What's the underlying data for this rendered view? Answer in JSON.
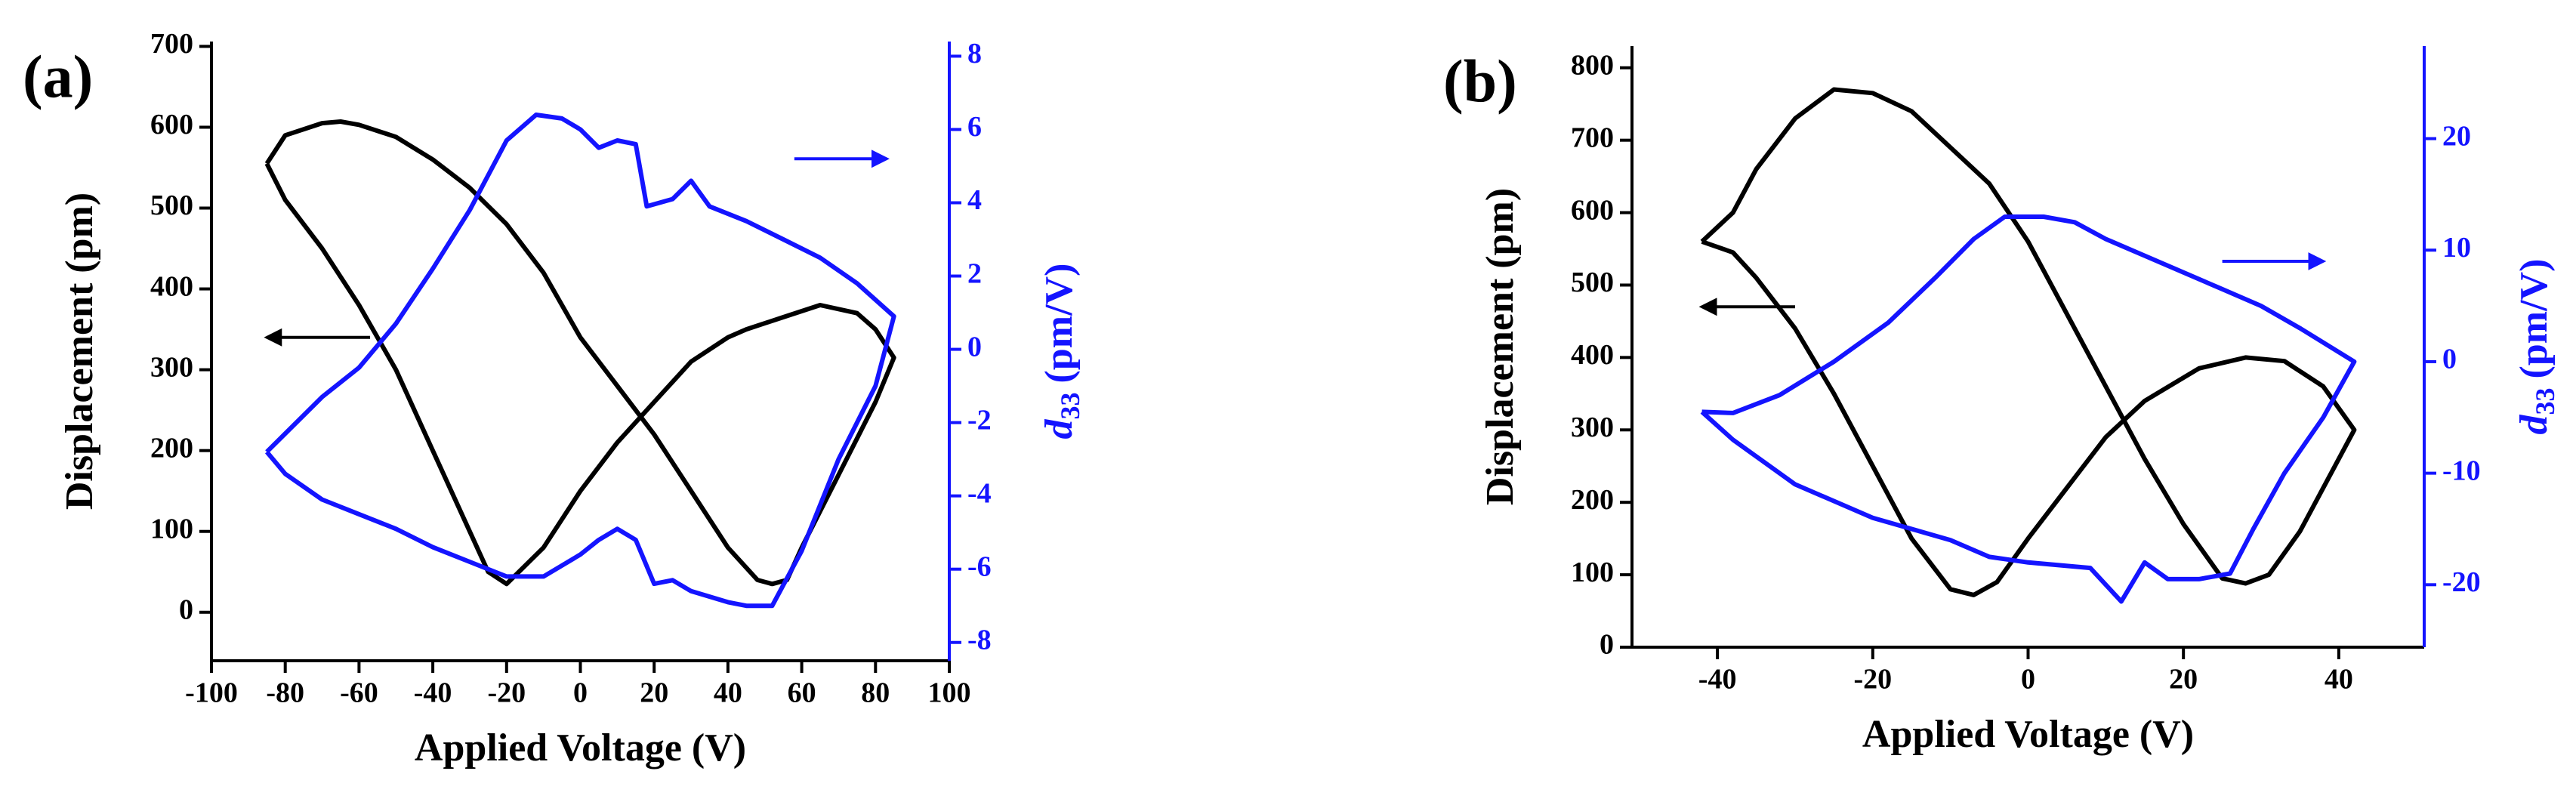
{
  "chart_data": [
    {
      "type": "line",
      "panel_label": "(a)",
      "xlabel": "Applied Voltage (V)",
      "ylabel": "Displacement (pm)",
      "y2label": {
        "symbol": "d",
        "subscript": "33",
        "unit": "(pm/V)"
      },
      "xlim": [
        -100,
        100
      ],
      "xticks": [
        -100,
        -80,
        -60,
        -40,
        -20,
        0,
        20,
        40,
        60,
        80,
        100
      ],
      "ylim": [
        -60,
        706
      ],
      "yticks": [
        0,
        100,
        200,
        300,
        400,
        500,
        600,
        700
      ],
      "y2lim": [
        -8.5,
        8.4
      ],
      "y2ticks": [
        -8,
        -6,
        -4,
        -2,
        0,
        2,
        4,
        6,
        8
      ],
      "series": [
        {
          "color": "#000000",
          "axis": "y",
          "x": [
            -85,
            -80,
            -70,
            -65,
            -60,
            -50,
            -40,
            -30,
            -20,
            -10,
            0,
            10,
            20,
            30,
            40,
            48,
            52,
            56,
            60,
            70,
            80,
            85,
            80,
            75,
            65,
            55,
            45,
            40,
            30,
            20,
            10,
            0,
            -10,
            -20,
            -25,
            -30,
            -40,
            -50,
            -60,
            -70,
            -80,
            -85
          ],
          "values": [
            555,
            590,
            605,
            607,
            603,
            588,
            560,
            525,
            480,
            420,
            340,
            280,
            220,
            150,
            80,
            40,
            35,
            40,
            80,
            170,
            260,
            315,
            350,
            370,
            380,
            365,
            350,
            340,
            310,
            260,
            210,
            150,
            80,
            35,
            50,
            100,
            200,
            300,
            380,
            450,
            510,
            555
          ]
        },
        {
          "color": "#1414ff",
          "axis": "y2",
          "x": [
            -85,
            -70,
            -60,
            -50,
            -40,
            -30,
            -20,
            -12,
            -5,
            0,
            5,
            10,
            15,
            18,
            25,
            30,
            35,
            45,
            55,
            65,
            75,
            85,
            80,
            70,
            60,
            52,
            45,
            40,
            30,
            25,
            20,
            15,
            10,
            5,
            0,
            -10,
            -20,
            -30,
            -40,
            -50,
            -60,
            -70,
            -80,
            -85
          ],
          "values": [
            -2.8,
            -1.3,
            -0.5,
            0.7,
            2.2,
            3.8,
            5.7,
            6.4,
            6.3,
            6.0,
            5.5,
            5.7,
            5.6,
            3.9,
            4.1,
            4.6,
            3.9,
            3.5,
            3.0,
            2.5,
            1.8,
            0.9,
            -1.0,
            -3.0,
            -5.5,
            -7.0,
            -7.0,
            -6.9,
            -6.6,
            -6.3,
            -6.4,
            -5.2,
            -4.9,
            -5.2,
            -5.6,
            -6.2,
            -6.2,
            -5.8,
            -5.4,
            -4.9,
            -4.5,
            -4.1,
            -3.4,
            -2.8
          ]
        }
      ]
    },
    {
      "type": "line",
      "panel_label": "(b)",
      "xlabel": "Applied Voltage (V)",
      "ylabel": "Displacement (pm)",
      "y2label": {
        "symbol": "d",
        "subscript": "33",
        "unit": "(pm/V)"
      },
      "xlim": [
        -51,
        51
      ],
      "xticks": [
        -40,
        -20,
        0,
        20,
        40
      ],
      "ylim": [
        0,
        830
      ],
      "yticks": [
        0,
        100,
        200,
        300,
        400,
        500,
        600,
        700,
        800
      ],
      "y2lim": [
        -25.6,
        28.3
      ],
      "y2ticks": [
        -20,
        -10,
        0,
        10,
        20
      ],
      "series": [
        {
          "color": "#000000",
          "axis": "y",
          "x": [
            -42,
            -38,
            -35,
            -30,
            -25,
            -20,
            -15,
            -10,
            -5,
            0,
            5,
            10,
            15,
            20,
            25,
            28,
            31,
            35,
            42,
            38,
            33,
            28,
            22,
            15,
            10,
            5,
            0,
            -4,
            -7,
            -10,
            -15,
            -20,
            -25,
            -30,
            -35,
            -38,
            -42
          ],
          "values": [
            560,
            600,
            660,
            730,
            770,
            765,
            740,
            690,
            640,
            560,
            460,
            360,
            260,
            170,
            95,
            88,
            100,
            160,
            300,
            360,
            395,
            400,
            385,
            340,
            290,
            220,
            150,
            90,
            72,
            80,
            150,
            250,
            350,
            440,
            510,
            545,
            560
          ]
        },
        {
          "color": "#1414ff",
          "axis": "y2",
          "x": [
            -42,
            -38,
            -32,
            -25,
            -18,
            -12,
            -7,
            -3,
            2,
            6,
            10,
            15,
            20,
            25,
            30,
            35,
            42,
            38,
            33,
            29,
            26,
            22,
            18,
            15,
            12,
            8,
            0,
            -5,
            -10,
            -20,
            -30,
            -38,
            -42
          ],
          "values": [
            -4.5,
            -4.6,
            -3,
            0,
            3.5,
            7.5,
            11,
            13,
            13,
            12.5,
            11,
            9.5,
            8,
            6.5,
            5,
            3,
            0,
            -5,
            -10,
            -15,
            -19,
            -19.5,
            -19.5,
            -18,
            -21.5,
            -18.5,
            -18,
            -17.5,
            -16,
            -14,
            -11,
            -7,
            -4.5
          ]
        }
      ]
    }
  ]
}
